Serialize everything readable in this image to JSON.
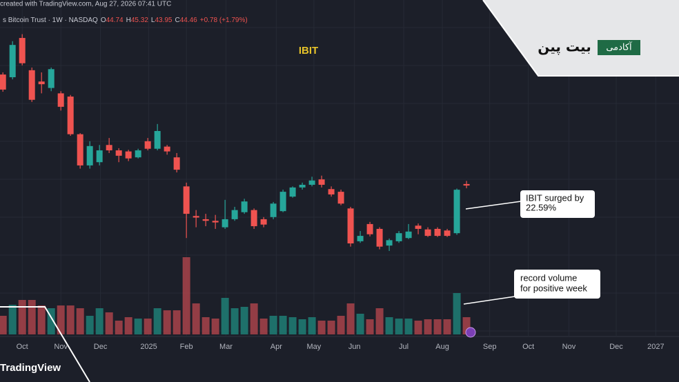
{
  "header": {
    "source": "created with TradingView.com, Aug 27, 2026 07:41 UTC",
    "symbol": "s Bitcoin Trust · 1W · NASDAQ",
    "change": "+0.78 (+1.79%)"
  },
  "logo": {
    "badge": "آکادمی",
    "name": "بیت پین"
  },
  "brand": "TradingView",
  "chart_data": {
    "type": "candlestick",
    "title": "IBIT",
    "ohlc_labels": [
      "O",
      "H",
      "L",
      "C"
    ],
    "x": [
      0,
      1,
      2,
      3,
      4,
      5,
      6,
      7,
      8,
      9,
      10,
      11,
      12,
      13,
      14,
      15,
      16,
      17,
      18,
      19,
      20,
      21,
      22,
      23,
      24,
      25,
      26,
      27,
      28,
      29,
      30,
      31,
      32,
      33,
      34,
      35,
      36,
      37,
      38,
      39,
      40,
      41,
      42,
      43,
      44,
      45,
      46,
      47,
      48
    ],
    "open": [
      65.1,
      64.6,
      71.9,
      65.9,
      63.8,
      62.6,
      61.6,
      61.0,
      54.0,
      48.2,
      48.8,
      52.0,
      51.0,
      50.8,
      49.7,
      52.7,
      51.3,
      51.7,
      49.7,
      44.3,
      38.8,
      38.2,
      37.9,
      36.7,
      38.2,
      39.5,
      39.9,
      38.2,
      38.6,
      39.7,
      42.4,
      44.1,
      44.6,
      45.6,
      43.8,
      43.3,
      40.2,
      34.1,
      37.3,
      36.4,
      33.3,
      34.1,
      34.7,
      37.0,
      36.3,
      36.4,
      36.1,
      35.6,
      44.74
    ],
    "high": [
      65.5,
      71.3,
      72.6,
      66.4,
      65.5,
      66.4,
      62.0,
      61.3,
      54.2,
      52.7,
      52.0,
      53.3,
      51.4,
      51.1,
      51.3,
      53.3,
      55.9,
      52.0,
      50.5,
      45.0,
      39.9,
      39.2,
      39.0,
      41.8,
      40.5,
      42.0,
      40.2,
      38.6,
      41.4,
      43.7,
      44.3,
      45.0,
      46.1,
      46.3,
      44.3,
      43.7,
      40.5,
      36.0,
      37.7,
      36.7,
      34.6,
      36.0,
      37.3,
      37.4,
      36.7,
      36.7,
      36.4,
      43.9,
      45.32
    ],
    "low": [
      61.9,
      64.2,
      66.8,
      60.0,
      61.6,
      62.0,
      58.4,
      53.7,
      47.6,
      47.6,
      48.2,
      50.5,
      48.8,
      49.0,
      49.5,
      51.0,
      51.0,
      50.2,
      46.9,
      34.7,
      36.7,
      36.9,
      36.4,
      36.4,
      37.9,
      39.2,
      36.4,
      36.7,
      38.2,
      39.5,
      42.2,
      43.7,
      44.3,
      44.1,
      42.4,
      40.8,
      33.1,
      33.8,
      35.0,
      32.6,
      32.3,
      33.8,
      34.5,
      35.4,
      34.9,
      34.9,
      34.9,
      35.3,
      43.95
    ],
    "close": [
      62.3,
      70.6,
      67.2,
      60.4,
      63.3,
      66.1,
      59.1,
      54.0,
      48.2,
      51.8,
      51.0,
      51.0,
      50.0,
      49.5,
      51.0,
      51.3,
      54.6,
      50.8,
      47.4,
      39.2,
      38.5,
      37.9,
      37.6,
      38.2,
      39.9,
      41.5,
      36.9,
      37.2,
      41.1,
      43.3,
      44.1,
      44.6,
      45.4,
      44.6,
      42.8,
      41.1,
      33.7,
      35.1,
      35.4,
      33.1,
      34.3,
      35.6,
      35.9,
      36.4,
      35.1,
      35.1,
      35.1,
      43.68,
      44.46
    ],
    "volume": [
      27,
      43,
      50,
      50,
      42,
      38,
      42,
      42,
      38,
      27,
      38,
      32,
      20,
      25,
      23,
      23,
      38,
      35,
      35,
      112,
      45,
      25,
      23,
      53,
      38,
      40,
      45,
      23,
      27,
      27,
      25,
      22,
      25,
      20,
      20,
      27,
      45,
      30,
      22,
      38,
      25,
      23,
      23,
      20,
      22,
      22,
      22,
      60,
      25
    ],
    "up_color": "#26a69a",
    "down_color": "#ef5350",
    "up_volume_color": "#1f7f76",
    "down_volume_color": "#a8434a",
    "xlim": [
      -0.3,
      70
    ],
    "xticks": [
      {
        "value": 2,
        "label": "Oct"
      },
      {
        "value": 6,
        "label": "Nov"
      },
      {
        "value": 10.1,
        "label": "Dec"
      },
      {
        "value": 15.1,
        "label": "2025"
      },
      {
        "value": 19,
        "label": "Feb"
      },
      {
        "value": 23.1,
        "label": "Mar"
      },
      {
        "value": 28.3,
        "label": "Apr"
      },
      {
        "value": 32.2,
        "label": "May"
      },
      {
        "value": 36.4,
        "label": "Jun"
      },
      {
        "value": 41.5,
        "label": "Jul"
      },
      {
        "value": 45.5,
        "label": "Aug"
      },
      {
        "value": 50.4,
        "label": "Sep"
      },
      {
        "value": 54.4,
        "label": "Oct"
      },
      {
        "value": 58.6,
        "label": "Nov"
      },
      {
        "value": 63.5,
        "label": "Dec"
      },
      {
        "value": 67.6,
        "label": "2027"
      }
    ],
    "ylim": [
      18.7,
      78.7
    ],
    "volume_lim": [
      0,
      120
    ],
    "grid": true,
    "annotations": [
      {
        "lines": [
          "IBIT surged by",
          "22.59%"
        ]
      },
      {
        "lines": [
          "record volume",
          "for positive week"
        ]
      }
    ]
  }
}
